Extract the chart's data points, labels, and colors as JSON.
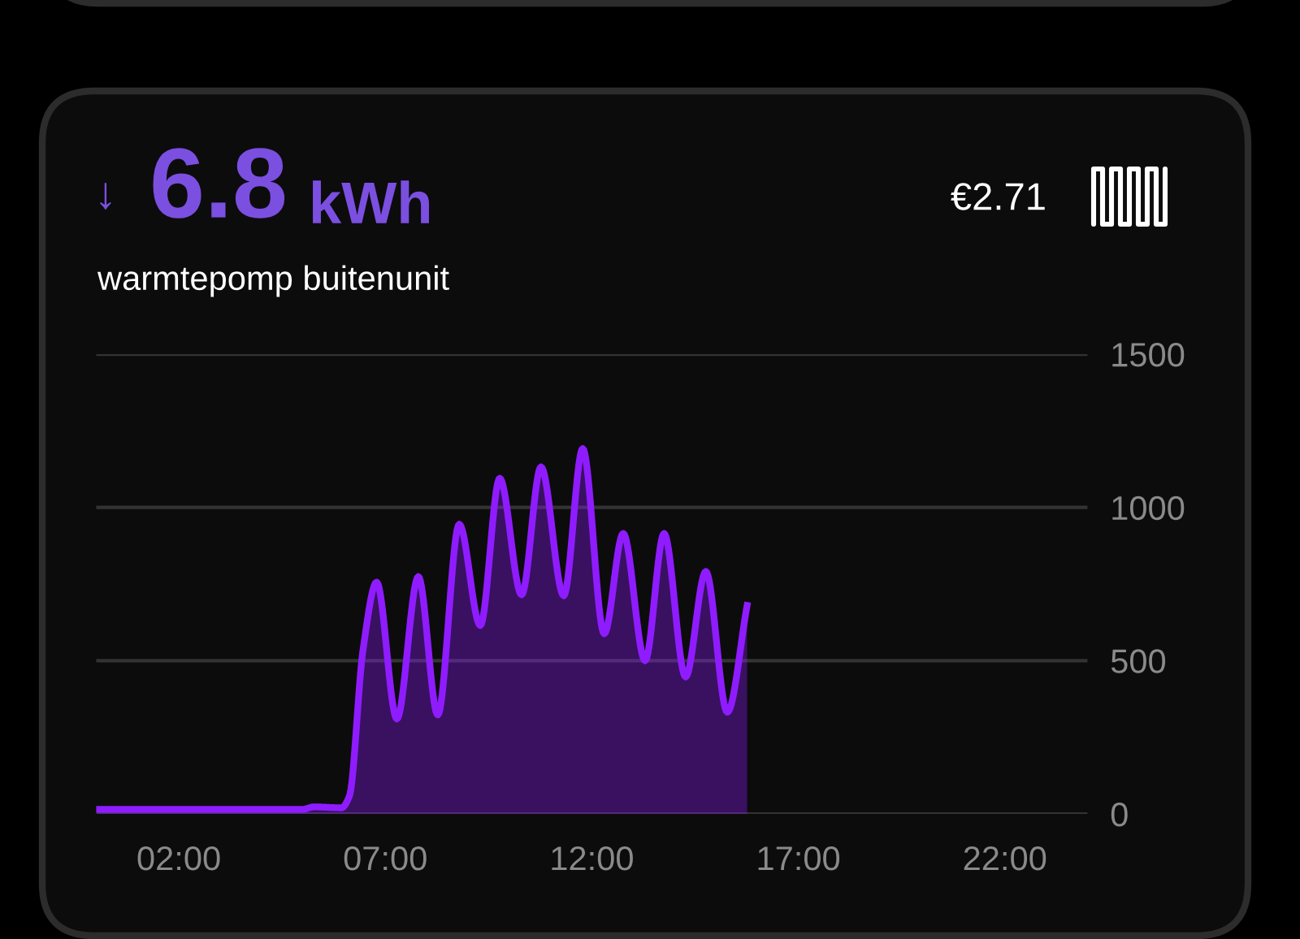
{
  "chart_data": {
    "type": "area",
    "title": "6.8",
    "subtitle": "warmtepomp buitenunit",
    "annotations": [
      "↓",
      "kWh",
      "€2.71"
    ],
    "x": [
      0.03,
      5.0,
      5.27,
      5.94,
      6.13,
      6.46,
      6.79,
      7.28,
      7.8,
      8.27,
      8.79,
      9.3,
      9.77,
      10.3,
      10.77,
      11.32,
      11.78,
      12.3,
      12.76,
      13.29,
      13.75,
      14.27,
      14.76,
      15.28,
      15.76
    ],
    "series": [
      {
        "color": "#8f1cff",
        "values": [
          15,
          15,
          23,
          20,
          58,
          535,
          756,
          310,
          774,
          323,
          945,
          615,
          1095,
          715,
          1132,
          712,
          1192,
          588,
          915,
          500,
          915,
          447,
          791,
          332,
          680
        ]
      }
    ],
    "xlim": [
      0,
      24
    ],
    "xticks": [
      {
        "value": 2,
        "label": "02:00"
      },
      {
        "value": 7,
        "label": "07:00"
      },
      {
        "value": 12,
        "label": "12:00"
      },
      {
        "value": 17,
        "label": "17:00"
      },
      {
        "value": 22,
        "label": "22:00"
      }
    ],
    "ylim": [
      0,
      1500
    ],
    "yticks": [
      0,
      500,
      1000,
      1500
    ],
    "grid": "y",
    "legend": false
  }
}
